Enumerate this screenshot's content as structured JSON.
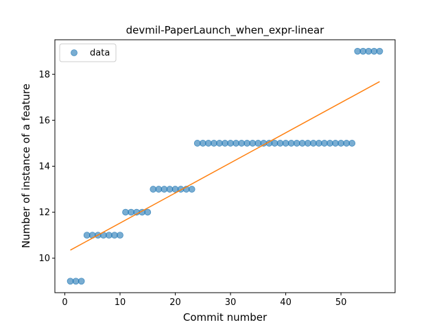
{
  "chart_data": {
    "type": "scatter",
    "title": "devmil-PaperLaunch_when_expr-linear",
    "xlabel": "Commit number",
    "ylabel": "Number of instance of a feature",
    "xlim": [
      -1.8,
      59.8
    ],
    "ylim": [
      8.5,
      19.5
    ],
    "xticks": [
      0,
      10,
      20,
      30,
      40,
      50
    ],
    "yticks": [
      10,
      12,
      14,
      16,
      18
    ],
    "legend_placement": "upper-left",
    "grid": false,
    "series": [
      {
        "name": "data",
        "kind": "points",
        "color": "#1f77b4",
        "x": [
          1,
          2,
          3,
          4,
          5,
          6,
          7,
          8,
          9,
          10,
          11,
          12,
          13,
          14,
          15,
          16,
          17,
          18,
          19,
          20,
          21,
          22,
          23,
          24,
          25,
          26,
          27,
          28,
          29,
          30,
          31,
          32,
          33,
          34,
          35,
          36,
          37,
          38,
          39,
          40,
          41,
          42,
          43,
          44,
          45,
          46,
          47,
          48,
          49,
          50,
          51,
          52,
          53,
          54,
          55,
          56,
          57
        ],
        "y": [
          9,
          9,
          9,
          11,
          11,
          11,
          11,
          11,
          11,
          11,
          12,
          12,
          12,
          12,
          12,
          13,
          13,
          13,
          13,
          13,
          13,
          13,
          13,
          15,
          15,
          15,
          15,
          15,
          15,
          15,
          15,
          15,
          15,
          15,
          15,
          15,
          15,
          15,
          15,
          15,
          15,
          15,
          15,
          15,
          15,
          15,
          15,
          15,
          15,
          15,
          15,
          15,
          19,
          19,
          19,
          19,
          19
        ]
      },
      {
        "kind": "line",
        "color": "#ff7f0e",
        "x": [
          1,
          57
        ],
        "y": [
          10.35,
          17.68
        ]
      }
    ]
  }
}
